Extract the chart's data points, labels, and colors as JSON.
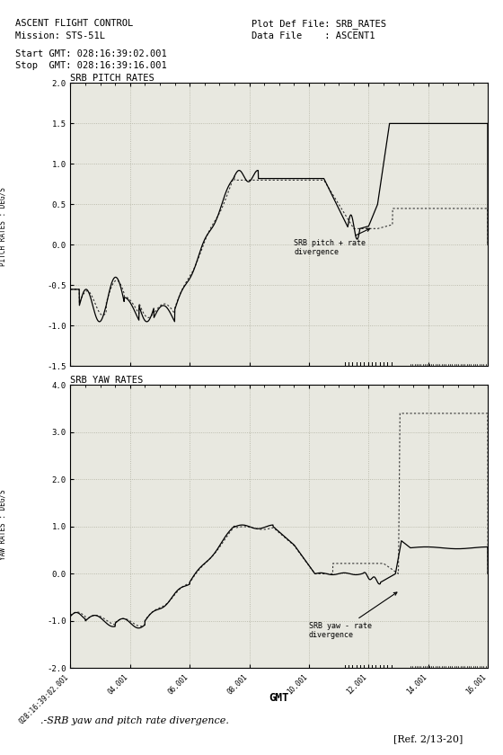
{
  "title_left1": "ASCENT FLIGHT CONTROL",
  "title_left2": "Mission: STS-51L",
  "title_right1": "Plot Def File: SRB_RATES",
  "title_right2": "Data File    : ASCENT1",
  "start_gmt": "Start GMT: 028:16:39:02.001",
  "stop_gmt": "Stop  GMT: 028:16:39:16.001",
  "xlabel": "GMT",
  "caption": ".-SRB yaw and pitch rate divergence.",
  "ref": "[Ref. 2/13-20]",
  "pitch_title": "SRB PITCH RATES",
  "yaw_title": "SRB YAW RATES",
  "pitch_ylabel": "PITCH RATES : DEG/S",
  "yaw_ylabel": "YAW RATES : DEG/S",
  "pitch_ylim": [
    -1.5,
    2.0
  ],
  "yaw_ylim": [
    -2.0,
    4.0
  ],
  "pitch_yticks": [
    -1.5,
    -1.0,
    -0.5,
    0.0,
    0.5,
    1.0,
    1.5,
    2.0
  ],
  "yaw_yticks": [
    -2.0,
    -1.0,
    0.0,
    1.0,
    2.0,
    3.0,
    4.0
  ],
  "xmin": 2.0,
  "xmax": 16.0,
  "xtick_values": [
    2.001,
    4.001,
    6.001,
    8.001,
    10.001,
    12.001,
    14.001,
    16.001
  ],
  "xtick_label0": "028:16:39:02.001",
  "xtick_labels": [
    "04.001",
    "06.001",
    "08.001",
    "10.001",
    "12.001",
    "14.001",
    "16.001"
  ],
  "bg_color": "#e8e8e0",
  "grid_color": "#b0b0a0",
  "line_color_solid": "#000000",
  "line_color_dotted": "#333333",
  "fig_bg": "#ffffff"
}
